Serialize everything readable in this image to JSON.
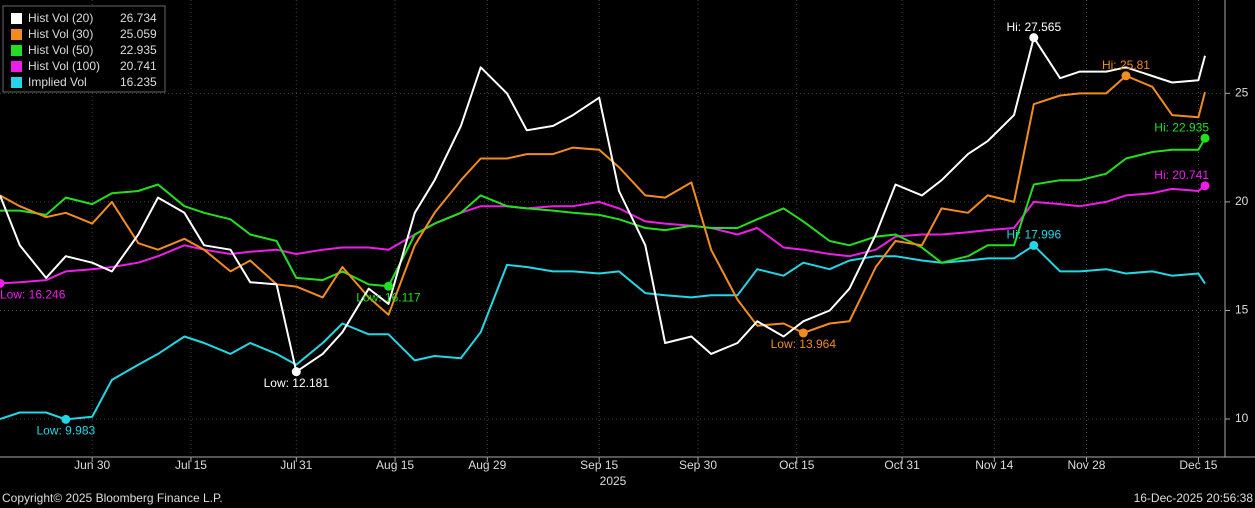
{
  "chart_data": {
    "type": "line",
    "x": [
      "2025-06-16",
      "2025-06-19",
      "2025-06-23",
      "2025-06-26",
      "2025-06-30",
      "2025-07-03",
      "2025-07-07",
      "2025-07-10",
      "2025-07-14",
      "2025-07-17",
      "2025-07-21",
      "2025-07-24",
      "2025-07-28",
      "2025-07-31",
      "2025-08-04",
      "2025-08-07",
      "2025-08-11",
      "2025-08-14",
      "2025-08-18",
      "2025-08-21",
      "2025-08-25",
      "2025-08-28",
      "2025-09-01",
      "2025-09-04",
      "2025-09-08",
      "2025-09-11",
      "2025-09-15",
      "2025-09-18",
      "2025-09-22",
      "2025-09-25",
      "2025-09-29",
      "2025-10-02",
      "2025-10-06",
      "2025-10-09",
      "2025-10-13",
      "2025-10-16",
      "2025-10-20",
      "2025-10-23",
      "2025-10-27",
      "2025-10-30",
      "2025-11-03",
      "2025-11-06",
      "2025-11-10",
      "2025-11-13",
      "2025-11-17",
      "2025-11-20",
      "2025-11-24",
      "2025-11-27",
      "2025-12-01",
      "2025-12-04",
      "2025-12-08",
      "2025-12-11",
      "2025-12-15",
      "2025-12-16"
    ],
    "series": [
      {
        "name": "Hist Vol (20)",
        "last_value": 26.734,
        "color": "#ffffff",
        "values": [
          20.3,
          18.0,
          16.5,
          17.5,
          17.2,
          16.8,
          18.5,
          20.2,
          19.5,
          18.0,
          17.8,
          16.3,
          16.2,
          12.181,
          13.0,
          14.0,
          16.0,
          15.3,
          19.5,
          21.0,
          23.5,
          26.2,
          25.0,
          23.3,
          23.5,
          24.0,
          24.8,
          20.5,
          18.0,
          13.5,
          13.8,
          13.0,
          13.5,
          14.5,
          13.8,
          14.5,
          15.0,
          16.0,
          18.5,
          20.8,
          20.3,
          21.0,
          22.2,
          22.8,
          24.0,
          27.565,
          25.7,
          26.0,
          26.0,
          26.2,
          25.8,
          25.5,
          25.6,
          26.734
        ]
      },
      {
        "name": "Hist Vol (30)",
        "last_value": 25.059,
        "color": "#f28c1e",
        "values": [
          20.3,
          19.8,
          19.3,
          19.5,
          19.0,
          20.0,
          18.1,
          17.8,
          18.3,
          17.8,
          16.8,
          17.3,
          16.2,
          16.1,
          15.6,
          17.0,
          15.6,
          14.8,
          18.0,
          19.5,
          21.0,
          22.0,
          22.0,
          22.2,
          22.2,
          22.5,
          22.4,
          21.6,
          20.3,
          20.2,
          20.9,
          17.8,
          15.5,
          14.3,
          14.4,
          13.964,
          14.4,
          14.5,
          17.0,
          18.2,
          18.0,
          19.7,
          19.5,
          20.3,
          20.0,
          24.5,
          24.9,
          25.0,
          25.0,
          25.81,
          25.3,
          24.0,
          23.9,
          25.059
        ]
      },
      {
        "name": "Hist Vol (50)",
        "last_value": 22.935,
        "color": "#22e01e",
        "values": [
          19.6,
          19.6,
          19.4,
          20.2,
          19.9,
          20.4,
          20.5,
          20.8,
          19.8,
          19.5,
          19.2,
          18.5,
          18.2,
          16.5,
          16.4,
          16.8,
          16.2,
          16.117,
          18.5,
          19.0,
          19.5,
          20.3,
          19.8,
          19.7,
          19.6,
          19.5,
          19.4,
          19.2,
          18.8,
          18.7,
          18.9,
          18.8,
          18.8,
          19.2,
          19.7,
          19.1,
          18.2,
          18.0,
          18.4,
          18.5,
          17.9,
          17.2,
          17.5,
          18.0,
          18.0,
          20.8,
          21.0,
          21.0,
          21.3,
          22.0,
          22.3,
          22.4,
          22.4,
          22.935
        ]
      },
      {
        "name": "Hist Vol (100)",
        "last_value": 20.741,
        "color": "#ee1ee8",
        "values": [
          16.246,
          16.3,
          16.4,
          16.8,
          16.9,
          17.0,
          17.2,
          17.5,
          18.0,
          17.8,
          17.6,
          17.7,
          17.8,
          17.6,
          17.8,
          17.9,
          17.9,
          17.8,
          18.5,
          19.0,
          19.5,
          19.8,
          19.8,
          19.7,
          19.8,
          19.8,
          20.0,
          19.7,
          19.1,
          19.0,
          18.9,
          18.8,
          18.5,
          18.8,
          17.9,
          17.8,
          17.6,
          17.5,
          17.8,
          18.4,
          18.5,
          18.5,
          18.6,
          18.7,
          18.8,
          20.0,
          19.9,
          19.8,
          20.0,
          20.3,
          20.4,
          20.6,
          20.5,
          20.741
        ]
      },
      {
        "name": "Implied Vol",
        "last_value": 16.235,
        "color": "#22d8e6",
        "values": [
          10.0,
          10.3,
          10.3,
          9.983,
          10.1,
          11.8,
          12.5,
          13.0,
          13.8,
          13.5,
          13.0,
          13.5,
          13.0,
          12.5,
          13.5,
          14.4,
          13.9,
          13.9,
          12.7,
          12.9,
          12.8,
          14.0,
          17.1,
          17.0,
          16.8,
          16.8,
          16.7,
          16.8,
          15.8,
          15.7,
          15.6,
          15.7,
          15.7,
          16.9,
          16.6,
          17.2,
          16.9,
          17.3,
          17.5,
          17.5,
          17.3,
          17.2,
          17.3,
          17.4,
          17.4,
          17.996,
          16.8,
          16.8,
          16.9,
          16.7,
          16.8,
          16.6,
          16.7,
          16.235
        ]
      }
    ],
    "annotations": [
      {
        "text": "Hi: 27.565",
        "x": "2025-11-20",
        "y": 27.565,
        "color": "#ffffff"
      },
      {
        "text": "Low: 12.181",
        "x": "2025-07-31",
        "y": 12.181,
        "color": "#ffffff"
      },
      {
        "text": "Hi: 25.81",
        "x": "2025-12-04",
        "y": 25.81,
        "color": "#f28c1e"
      },
      {
        "text": "Low: 13.964",
        "x": "2025-10-16",
        "y": 13.964,
        "color": "#f28c1e"
      },
      {
        "text": "Hi: 22.935",
        "x": "2025-12-16",
        "y": 22.935,
        "color": "#22e01e"
      },
      {
        "text": "Low: 16.117",
        "x": "2025-08-14",
        "y": 16.117,
        "color": "#22e01e"
      },
      {
        "text": "Hi: 20.741",
        "x": "2025-12-16",
        "y": 20.741,
        "color": "#ee1ee8"
      },
      {
        "text": "Low: 16.246",
        "x": "2025-06-16",
        "y": 16.246,
        "color": "#ee1ee8"
      },
      {
        "text": "Hi: 17.996",
        "x": "2025-11-20",
        "y": 17.996,
        "color": "#22d8e6"
      },
      {
        "text": "Low: 9.983",
        "x": "2025-06-26",
        "y": 9.983,
        "color": "#22d8e6"
      }
    ],
    "xlim": [
      "2025-06-16",
      "2025-12-16"
    ],
    "xticks": [
      {
        "value": "2025-06-30",
        "label": "Jun 30"
      },
      {
        "value": "2025-07-15",
        "label": "Jul 15"
      },
      {
        "value": "2025-07-31",
        "label": "Jul 31"
      },
      {
        "value": "2025-08-15",
        "label": "Aug 15"
      },
      {
        "value": "2025-08-29",
        "label": "Aug 29"
      },
      {
        "value": "2025-09-15",
        "label": "Sep 15"
      },
      {
        "value": "2025-09-30",
        "label": "Sep 30"
      },
      {
        "value": "2025-10-15",
        "label": "Oct 15"
      },
      {
        "value": "2025-10-31",
        "label": "Oct 31"
      },
      {
        "value": "2025-11-14",
        "label": "Nov 14"
      },
      {
        "value": "2025-11-28",
        "label": "Nov 28"
      },
      {
        "value": "2025-12-15",
        "label": "Dec 15"
      }
    ],
    "year_label": "2025",
    "ylim": [
      8.25,
      29.3
    ],
    "yticks": [
      10,
      15,
      20,
      25
    ],
    "grid": true,
    "footer_left": "Copyright© 2025 Bloomberg Finance L.P.",
    "footer_right": "16-Dec-2025 20:56:38"
  }
}
